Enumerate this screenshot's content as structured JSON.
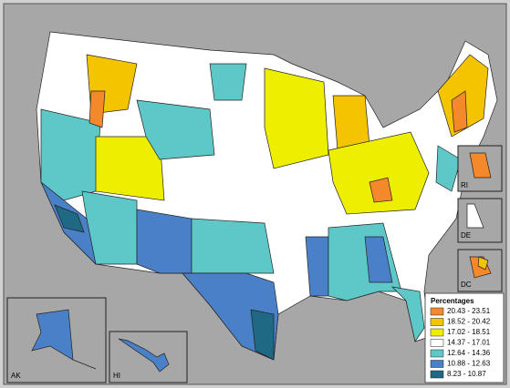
{
  "legend": {
    "title": "Percentages",
    "items": [
      {
        "label": "20.43 - 23.51",
        "color": "#f4892c"
      },
      {
        "label": "18.52 - 20.42",
        "color": "#f5c400"
      },
      {
        "label": "17.02 - 18.51",
        "color": "#eeee00"
      },
      {
        "label": "14.37 - 17.01",
        "color": "#ffffff"
      },
      {
        "label": "12.64 - 14.36",
        "color": "#5ec8c8"
      },
      {
        "label": "10.88 - 12.63",
        "color": "#4a80c8"
      },
      {
        "label": "8.23 - 10.87",
        "color": "#1f6985"
      }
    ]
  },
  "insets": [
    "AK",
    "HI",
    "RI",
    "DE",
    "DC"
  ]
}
